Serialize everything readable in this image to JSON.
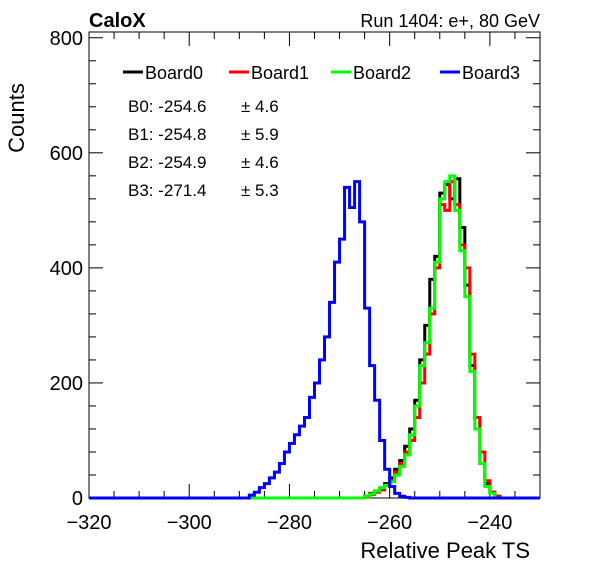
{
  "header": {
    "left": "CaloX",
    "right": "Run 1404: e+, 80 GeV"
  },
  "chart_data": {
    "type": "histogram",
    "xlabel": "Relative Peak TS",
    "ylabel": "Counts",
    "xlim": [
      -320,
      -230
    ],
    "ylim": [
      0,
      810
    ],
    "bin_width": 1,
    "x_ticks": [
      -320,
      -300,
      -280,
      -260,
      -240
    ],
    "x_tick_labels": [
      "−320",
      "−300",
      "−280",
      "−260",
      "−240"
    ],
    "y_ticks": [
      0,
      200,
      400,
      600,
      800
    ],
    "y_tick_labels": [
      "0",
      "200",
      "400",
      "600",
      "800"
    ],
    "legend": {
      "placement": "top",
      "entries": [
        {
          "label": "Board0",
          "color": "#000000"
        },
        {
          "label": "Board1",
          "color": "#ff0000"
        },
        {
          "label": "Board2",
          "color": "#00ff00"
        },
        {
          "label": "Board3",
          "color": "#0000ff"
        }
      ]
    },
    "stats": [
      {
        "label": "B0: -254.6",
        "err": "± 4.6"
      },
      {
        "label": "B1: -254.8",
        "err": "± 5.9"
      },
      {
        "label": "B2: -254.9",
        "err": "± 4.6"
      },
      {
        "label": "B3: -271.4",
        "err": "± 5.3"
      }
    ],
    "series": [
      {
        "name": "Board0",
        "color": "#000000",
        "x_start": -265,
        "values": [
          3,
          8,
          12,
          15,
          25,
          35,
          50,
          65,
          90,
          120,
          170,
          240,
          300,
          380,
          420,
          530,
          545,
          520,
          555,
          470,
          370,
          230,
          140,
          60,
          25,
          10,
          3
        ]
      },
      {
        "name": "Board1",
        "color": "#ff0000",
        "x_start": -265,
        "values": [
          2,
          6,
          10,
          14,
          22,
          30,
          45,
          60,
          80,
          100,
          140,
          200,
          250,
          320,
          400,
          510,
          500,
          550,
          510,
          440,
          400,
          250,
          140,
          80,
          30,
          10,
          3
        ]
      },
      {
        "name": "Board2",
        "color": "#00ff00",
        "x_start": -265,
        "values": [
          3,
          7,
          12,
          18,
          22,
          28,
          40,
          55,
          75,
          110,
          160,
          230,
          270,
          330,
          410,
          520,
          550,
          560,
          500,
          430,
          350,
          220,
          120,
          60,
          20,
          8
        ]
      },
      {
        "name": "Board3",
        "color": "#0000ff",
        "x_start": -288,
        "values": [
          5,
          10,
          18,
          25,
          35,
          45,
          60,
          80,
          95,
          110,
          125,
          140,
          175,
          200,
          240,
          280,
          340,
          410,
          450,
          540,
          505,
          550,
          480,
          330,
          230,
          170,
          100,
          50,
          20,
          8,
          3,
          1
        ]
      }
    ]
  }
}
